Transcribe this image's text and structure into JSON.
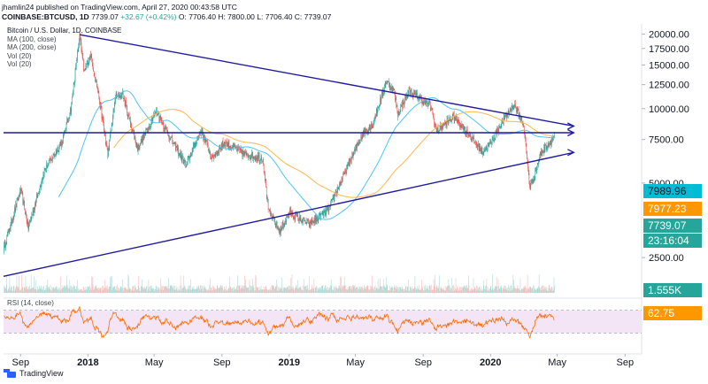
{
  "header": {
    "line1": "jhamlin24 published on TradingView.com, April 27, 2020 00:43:58 UTC",
    "symbol": "COINBASE:BTCUSD, 1D",
    "last": "7739.07",
    "change": "+32.67 (+0.42%)",
    "ohlc": "O: 7706.40 H: 7800.00 L: 7706.40 C: 7739.07"
  },
  "legend": {
    "title": "Bitcoin / U.S. Dollar, 1D, COINBASE",
    "items": [
      "MA (100, close)",
      "MA (200, close)",
      "Vol (20)",
      "Vol (20)"
    ],
    "rsi": "RSI (14, close)"
  },
  "footer": {
    "brand": "TradingView"
  },
  "colors": {
    "up": "#26a69a",
    "down": "#ef5350",
    "trend": "#1f1a9e",
    "ma100": "#4fc3f7",
    "ma200": "#ffb74d",
    "rsi": "#ff6d00",
    "rsi_band": "#f3e5f5",
    "label_cyan": "#00bcd4",
    "label_orange": "#ff9800",
    "label_green": "#26a69a"
  },
  "chart_data": {
    "type": "candlestick",
    "y_scale": "log",
    "ylim": [
      1800,
      22000
    ],
    "xlim": [
      "2017-08-01",
      "2020-10-01"
    ],
    "ytick_labels": [
      "20000.00",
      "17500.00",
      "15000.00",
      "12500.00",
      "10000.00",
      "7500.00",
      "5000.00",
      "2500.00"
    ],
    "yticks": [
      20000,
      17500,
      15000,
      12500,
      10000,
      7500,
      5000,
      2500
    ],
    "xtick_labels": [
      "Sep",
      "2018",
      "May",
      "Sep",
      "2019",
      "May",
      "Sep",
      "2020",
      "May",
      "Sep"
    ],
    "xticks": [
      "2017-09-01",
      "2018-01-01",
      "2018-05-01",
      "2018-09-01",
      "2019-01-01",
      "2019-05-01",
      "2019-09-01",
      "2020-01-01",
      "2020-05-01",
      "2020-09-01"
    ],
    "price_path": [
      [
        "2017-08-01",
        2700
      ],
      [
        "2017-09-01",
        4700
      ],
      [
        "2017-09-15",
        3300
      ],
      [
        "2017-10-15",
        5700
      ],
      [
        "2017-11-15",
        7300
      ],
      [
        "2017-12-01",
        10000
      ],
      [
        "2017-12-17",
        19700
      ],
      [
        "2017-12-25",
        14000
      ],
      [
        "2018-01-06",
        16500
      ],
      [
        "2018-01-20",
        11500
      ],
      [
        "2018-02-06",
        6500
      ],
      [
        "2018-02-20",
        11200
      ],
      [
        "2018-03-05",
        11400
      ],
      [
        "2018-04-01",
        6900
      ],
      [
        "2018-05-05",
        9800
      ],
      [
        "2018-06-01",
        7500
      ],
      [
        "2018-06-28",
        5900
      ],
      [
        "2018-07-25",
        8200
      ],
      [
        "2018-08-14",
        6300
      ],
      [
        "2018-09-05",
        7300
      ],
      [
        "2018-10-15",
        6500
      ],
      [
        "2018-11-14",
        6300
      ],
      [
        "2018-11-25",
        3800
      ],
      [
        "2018-12-15",
        3200
      ],
      [
        "2019-01-01",
        3800
      ],
      [
        "2019-02-07",
        3400
      ],
      [
        "2019-03-15",
        3950
      ],
      [
        "2019-04-03",
        5000
      ],
      [
        "2019-05-15",
        8000
      ],
      [
        "2019-06-01",
        8600
      ],
      [
        "2019-06-26",
        12900
      ],
      [
        "2019-07-10",
        11800
      ],
      [
        "2019-07-17",
        9500
      ],
      [
        "2019-08-06",
        11800
      ],
      [
        "2019-09-15",
        10200
      ],
      [
        "2019-09-25",
        8100
      ],
      [
        "2019-10-26",
        9300
      ],
      [
        "2019-11-20",
        8000
      ],
      [
        "2019-12-17",
        6700
      ],
      [
        "2020-01-01",
        7200
      ],
      [
        "2020-01-20",
        8700
      ],
      [
        "2020-02-13",
        10400
      ],
      [
        "2020-03-01",
        8600
      ],
      [
        "2020-03-12",
        4900
      ],
      [
        "2020-03-16",
        5000
      ],
      [
        "2020-04-01",
        6600
      ],
      [
        "2020-04-26",
        7739
      ]
    ],
    "lines": [
      {
        "name": "upper",
        "x": [
          "2017-12-17",
          "2020-05-31"
        ],
        "y": [
          19900,
          8500
        ]
      },
      {
        "name": "horizontal",
        "x": [
          "2017-08-01",
          "2020-05-31"
        ],
        "y": [
          7990,
          7990
        ]
      },
      {
        "name": "lower",
        "x": [
          "2017-08-01",
          "2020-05-31"
        ],
        "y": [
          2100,
          6650
        ]
      }
    ],
    "price_labels": [
      {
        "value": "7989.96",
        "level": 7990,
        "color": "cyan"
      },
      {
        "value": "7977.23",
        "level": 7977,
        "color": "orange"
      },
      {
        "value": "7739.07",
        "level": 7739,
        "color": "green"
      },
      {
        "value": "23:16:04",
        "level": 7739,
        "color": "green"
      },
      {
        "value": "1.555K",
        "color": "green"
      },
      {
        "value": "62.75",
        "color": "orange"
      }
    ],
    "rsi_last": 62.75,
    "rsi_band": [
      30,
      70
    ]
  }
}
